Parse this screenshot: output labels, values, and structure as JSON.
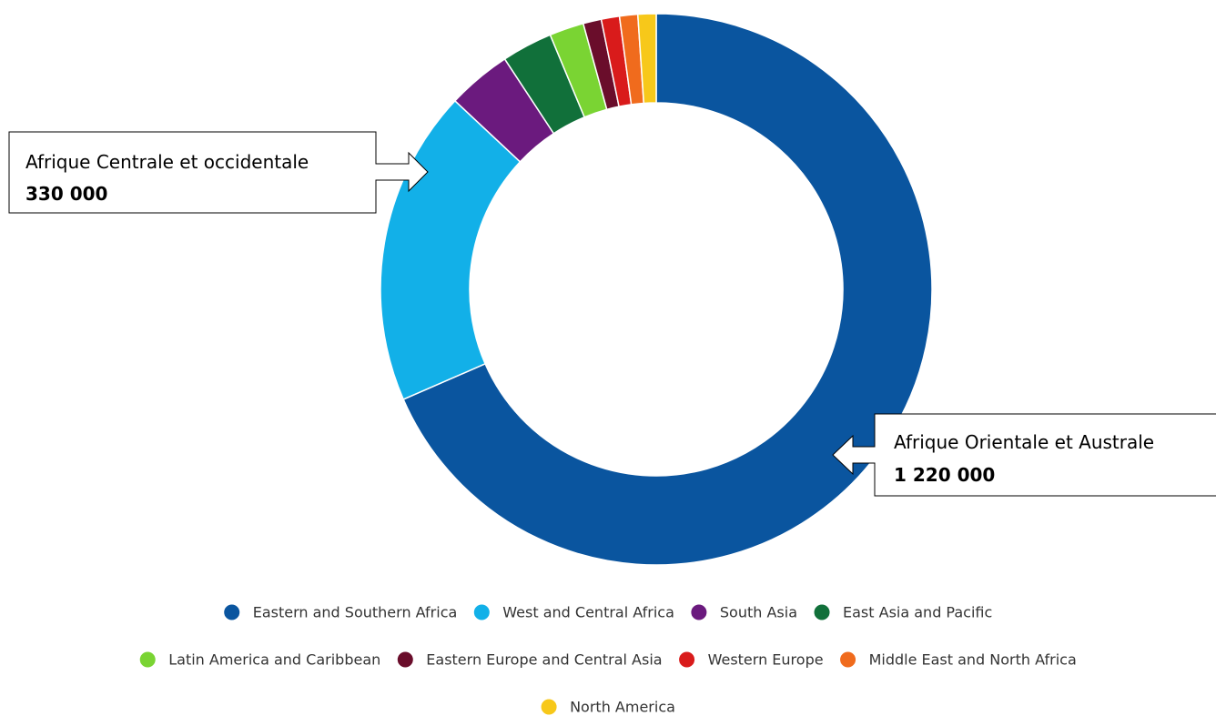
{
  "chart_data": {
    "type": "pie",
    "donut": true,
    "slices": [
      {
        "name": "Eastern and Southern Africa",
        "value": 1220000,
        "color": "#0a559f"
      },
      {
        "name": "West and Central Africa",
        "value": 330000,
        "color": "#12b0e8"
      },
      {
        "name": "South Asia",
        "value": 67000,
        "color": "#6b1a7e"
      },
      {
        "name": "East Asia and Pacific",
        "value": 53000,
        "color": "#11703a"
      },
      {
        "name": "Latin America and Caribbean",
        "value": 36000,
        "color": "#7ad433"
      },
      {
        "name": "Eastern Europe and Central Asia",
        "value": 19000,
        "color": "#6a0d2b"
      },
      {
        "name": "Western Europe",
        "value": 19000,
        "color": "#d91b1b"
      },
      {
        "name": "Middle East and North Africa",
        "value": 19000,
        "color": "#f06b1d"
      },
      {
        "name": "North America",
        "value": 19000,
        "color": "#f7c81a"
      }
    ],
    "legend_position": "bottom",
    "legend_rows": [
      [
        0,
        1,
        2,
        3
      ],
      [
        4,
        5,
        6,
        7
      ],
      [
        8
      ]
    ],
    "annotations": [
      {
        "slice": 1,
        "label": "Afrique Centrale et occidentale",
        "value_text": "330 000"
      },
      {
        "slice": 0,
        "label": "Afrique Orientale et Australe",
        "value_text": "1 220 000"
      }
    ]
  }
}
